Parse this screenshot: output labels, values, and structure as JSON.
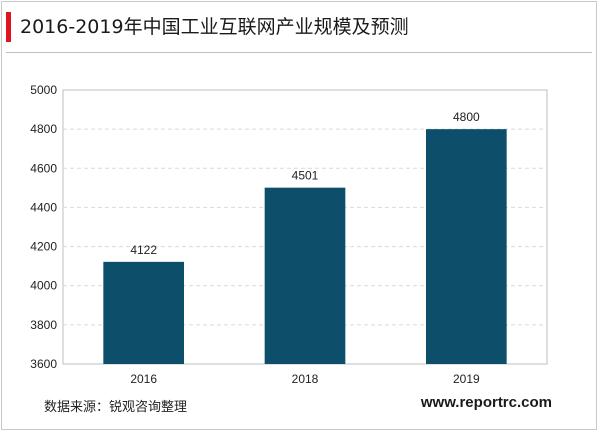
{
  "header": {
    "title": "2016-2019年中国工业互联网产业规模及预测"
  },
  "footer": {
    "source": "数据来源：锐观咨询整理",
    "website": "www.reportrc.com"
  },
  "colors": {
    "bar": "#0d4f6b",
    "accent": "#e0141e",
    "grid": "#d9d9d9"
  },
  "chart_data": {
    "type": "bar",
    "title": "2016-2019年中国工业互联网产业规模及预测",
    "categories": [
      "2016",
      "2018",
      "2019"
    ],
    "values": [
      4122,
      4501,
      4800
    ],
    "data_labels": [
      "4122",
      "4501",
      "4800"
    ],
    "xlabel": "",
    "ylabel": "",
    "ylim": [
      3600,
      5000
    ],
    "yticks": [
      3600,
      3800,
      4000,
      4200,
      4400,
      4600,
      4800,
      5000
    ],
    "grid": true,
    "grid_style": "dashed",
    "legend": false
  }
}
